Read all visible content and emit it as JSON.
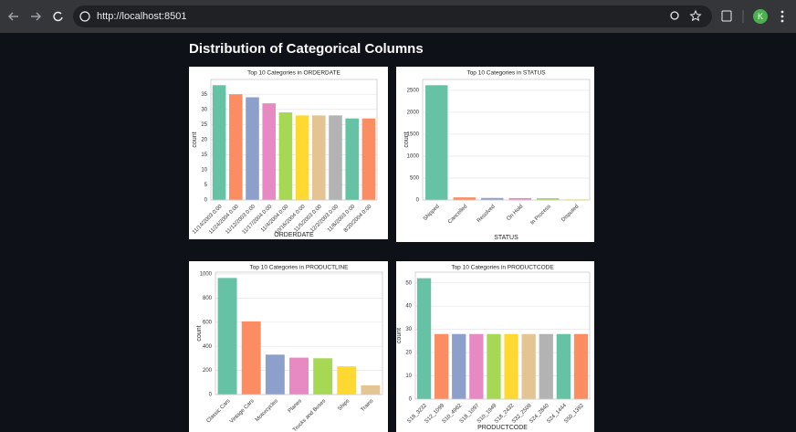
{
  "browser": {
    "url": "http://localhost:8501",
    "avatar": "K"
  },
  "heading": "Distribution of Categorical Columns",
  "chart_data": [
    {
      "type": "bar",
      "title": "Top 10 Categories in ORDERDATE",
      "x_label": "ORDERDATE",
      "y_label": "count",
      "categories": [
        "11/14/2003 0:00",
        "11/24/2004 0:00",
        "11/12/2003 0:00",
        "11/17/2004 0:00",
        "11/4/2004 0:00",
        "10/16/2004 0:00",
        "11/5/2003 0:00",
        "12/2/2003 0:00",
        "11/6/2003 0:00",
        "8/20/2004 0:00"
      ],
      "values": [
        38,
        35,
        34,
        32,
        29,
        28,
        28,
        28,
        27,
        27
      ],
      "colors": [
        "#66c2a5",
        "#fc8d62",
        "#8da0cb",
        "#e78ac3",
        "#a6d854",
        "#ffd92f",
        "#e5c494",
        "#b3b3b3"
      ],
      "ylim": [
        0,
        39.9
      ],
      "yticks": [
        0,
        5,
        10,
        15,
        20,
        25,
        30,
        35
      ],
      "grid": true
    },
    {
      "type": "bar",
      "title": "Top 10 Categories in STATUS",
      "x_label": "STATUS",
      "y_label": "count",
      "categories": [
        "Shipped",
        "Cancelled",
        "Resolved",
        "On Hold",
        "In Process",
        "Disputed"
      ],
      "values": [
        2617,
        60,
        47,
        44,
        41,
        14
      ],
      "colors": [
        "#66c2a5",
        "#fc8d62",
        "#8da0cb",
        "#e78ac3",
        "#a6d854",
        "#ffd92f"
      ],
      "ylim": [
        0,
        2748
      ],
      "yticks": [
        0,
        500,
        1000,
        1500,
        2000,
        2500
      ],
      "grid": true
    },
    {
      "type": "bar",
      "title": "Top 10 Categories in PRODUCTLINE",
      "y_label": "count",
      "categories": [
        "Classic Cars",
        "Vintage Cars",
        "Motorcycles",
        "Planes",
        "Trucks and Buses",
        "Ships",
        "Trains"
      ],
      "values": [
        967,
        607,
        331,
        306,
        301,
        234,
        77
      ],
      "colors": [
        "#66c2a5",
        "#fc8d62",
        "#8da0cb",
        "#e78ac3",
        "#a6d854",
        "#ffd92f",
        "#e5c494"
      ],
      "ylim": [
        0,
        1015
      ],
      "yticks": [
        0,
        200,
        400,
        600,
        800,
        1000
      ],
      "grid": true
    },
    {
      "type": "bar",
      "title": "Top 10 Categories in PRODUCTCODE",
      "x_label": "PRODUCTCODE",
      "y_label": "count",
      "categories": [
        "S18_3232",
        "S12_1099",
        "S10_4962",
        "S18_1097",
        "S10_1949",
        "S18_2432",
        "S32_2509",
        "S24_2840",
        "S24_1444",
        "S50_1392"
      ],
      "values": [
        52,
        28,
        28,
        28,
        28,
        28,
        28,
        28,
        28,
        28
      ],
      "colors": [
        "#66c2a5",
        "#fc8d62",
        "#8da0cb",
        "#e78ac3",
        "#a6d854",
        "#ffd92f",
        "#e5c494",
        "#b3b3b3"
      ],
      "ylim": [
        0,
        54.6
      ],
      "yticks": [
        0,
        10,
        20,
        30,
        40,
        50
      ],
      "grid": true
    }
  ]
}
